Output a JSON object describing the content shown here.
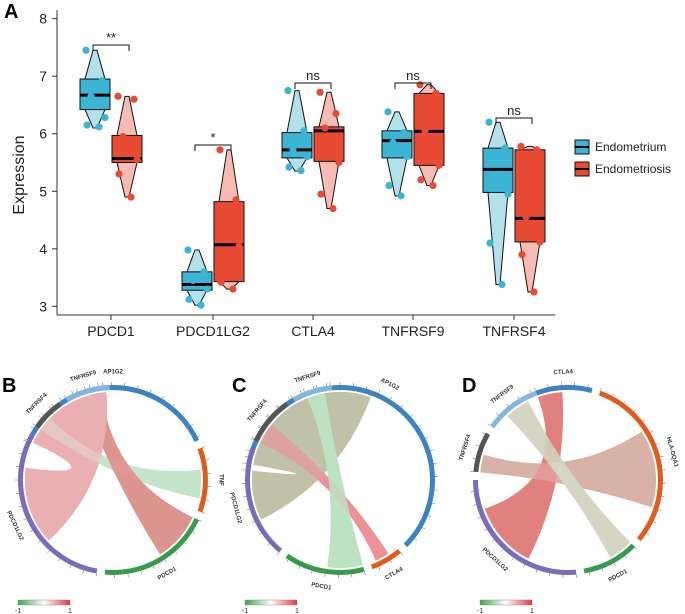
{
  "chart_data": [
    {
      "type": "box-violin",
      "panel": "A",
      "title": "",
      "xlabel": "",
      "ylabel": "Expression",
      "ylim": [
        2.85,
        8.15
      ],
      "yticks": [
        3,
        4,
        5,
        6,
        7,
        8
      ],
      "categories": [
        "PDCD1",
        "PDCD1LG2",
        "CTLA4",
        "TNFRSF9",
        "TNFRSF4"
      ],
      "significance": [
        "**",
        "*",
        "ns",
        "ns",
        "ns"
      ],
      "legend": {
        "position": "right",
        "items": [
          "Endometrium",
          "Endometriosis"
        ]
      },
      "colors": {
        "Endometrium": "#3cb4d4",
        "Endometriosis": "#e84a33",
        "EndometriumLight": "#a6dbe8",
        "EndometriosisLight": "#f4b0a6"
      },
      "series": [
        {
          "name": "Endometrium",
          "boxes": [
            {
              "min": 6.1,
              "q1": 6.42,
              "median": 6.67,
              "q3": 6.95,
              "max": 7.45,
              "points": [
                7.45,
                6.92,
                6.65,
                6.28,
                6.15,
                6.12
              ]
            },
            {
              "min": 3.02,
              "q1": 3.28,
              "median": 3.38,
              "q3": 3.6,
              "max": 3.98,
              "points": [
                3.98,
                3.6,
                3.45,
                3.3,
                3.12,
                3.02
              ]
            },
            {
              "min": 5.35,
              "q1": 5.58,
              "median": 5.72,
              "q3": 6.02,
              "max": 6.75,
              "points": [
                6.75,
                6.05,
                5.72,
                5.6,
                5.42,
                5.36
              ]
            },
            {
              "min": 4.92,
              "q1": 5.58,
              "median": 5.88,
              "q3": 6.05,
              "max": 6.38,
              "points": [
                6.38,
                6.02,
                5.85,
                5.6,
                5.1,
                4.92
              ]
            },
            {
              "min": 3.38,
              "q1": 4.98,
              "median": 5.38,
              "q3": 5.75,
              "max": 6.2,
              "points": [
                6.2,
                5.75,
                5.25,
                4.95,
                4.1,
                3.38
              ]
            }
          ]
        },
        {
          "name": "Endometriosis",
          "boxes": [
            {
              "min": 4.9,
              "q1": 5.5,
              "median": 5.57,
              "q3": 5.97,
              "max": 6.65,
              "points": [
                6.65,
                6.6,
                5.95,
                5.55,
                5.3,
                4.9
              ]
            },
            {
              "min": 3.3,
              "q1": 3.43,
              "median": 4.07,
              "q3": 4.82,
              "max": 5.72,
              "points": [
                5.72,
                4.85,
                4.3,
                4.05,
                3.42,
                3.3
              ]
            },
            {
              "min": 4.7,
              "q1": 5.52,
              "median": 6.05,
              "q3": 6.12,
              "max": 6.72,
              "points": [
                6.72,
                6.35,
                6.1,
                5.5,
                4.95,
                4.7
              ]
            },
            {
              "min": 5.1,
              "q1": 5.45,
              "median": 6.04,
              "q3": 6.7,
              "max": 6.85,
              "points": [
                6.85,
                6.7,
                6.05,
                5.45,
                5.2,
                5.1
              ]
            },
            {
              "min": 3.25,
              "q1": 4.12,
              "median": 4.53,
              "q3": 5.72,
              "max": 5.78,
              "points": [
                5.78,
                5.72,
                4.55,
                4.12,
                3.9,
                3.25
              ]
            }
          ]
        }
      ]
    },
    {
      "type": "chord",
      "panel": "B",
      "sectors": [
        "AP1G2",
        "TNF",
        "PDCD1",
        "PDCD1LG2",
        "TNFRSF4",
        "TNFRSF9"
      ],
      "colors": [
        "#3c82c4",
        "#e05c1c",
        "#3a9a4c",
        "#7a6cb8",
        "#555555",
        "#7fb7de"
      ],
      "spans": [
        [
          -65,
          65
        ],
        [
          70,
          110
        ],
        [
          115,
          185
        ],
        [
          190,
          300
        ],
        [
          305,
          325
        ],
        [
          330,
          358
        ]
      ],
      "links": [
        {
          "from": 1,
          "to": 4,
          "value": 0.55
        },
        {
          "from": 2,
          "to": 1,
          "value": -0.8
        },
        {
          "from": 3,
          "to": 3,
          "value": -0.5
        },
        {
          "from": 4,
          "to": 2,
          "value": 0.75
        },
        {
          "from": 5,
          "to": 2,
          "value": -0.2
        },
        {
          "from": 6,
          "to": 5,
          "value": 0.65
        },
        {
          "from": 7,
          "to": 6,
          "value": 0.3
        }
      ],
      "scale": {
        "min": "-1",
        "max": "1"
      }
    },
    {
      "type": "chord",
      "panel": "C",
      "sectors": [
        "AP1G2",
        "CTLA4",
        "PDCD1",
        "PDCD1LG2",
        "TNFRSF4",
        "TNFRSF9"
      ],
      "colors": [
        "#3c82c4",
        "#e05c1c",
        "#3a9a4c",
        "#7a6cb8",
        "#555555",
        "#7fb7de"
      ],
      "spans": [
        [
          -80,
          135
        ],
        [
          140,
          160
        ],
        [
          165,
          215
        ],
        [
          220,
          290
        ],
        [
          295,
          325
        ],
        [
          330,
          355
        ]
      ],
      "links": [
        {
          "from": 1,
          "to": 5,
          "value": 0.9
        },
        {
          "from": 2,
          "to": 7,
          "value": 0.85
        },
        {
          "from": 3,
          "to": 2,
          "value": -0.6
        },
        {
          "from": 4,
          "to": 3,
          "value": -0.4
        },
        {
          "from": 5,
          "to": 6,
          "value": 0.5
        },
        {
          "from": 6,
          "to": 1,
          "value": -0.3
        }
      ],
      "scale": {
        "min": "-1",
        "max": "1"
      }
    },
    {
      "type": "chord",
      "panel": "D",
      "sectors": [
        "CTLA4",
        "HLA-DQA1",
        "PDCD1",
        "PDCD1LG2",
        "TNFRSF4",
        "TNFRSF9"
      ],
      "colors": [
        "#3c82c4",
        "#e05c1c",
        "#3a9a4c",
        "#7a6cb8",
        "#555555",
        "#7fb7de"
      ],
      "spans": [
        [
          -20,
          15
        ],
        [
          20,
          130
        ],
        [
          135,
          170
        ],
        [
          175,
          270
        ],
        [
          275,
          300
        ],
        [
          305,
          340
        ]
      ],
      "links": [
        {
          "from": 1,
          "to": 5,
          "value": -0.35
        },
        {
          "from": 2,
          "to": 3,
          "value": -0.6
        },
        {
          "from": 3,
          "to": 4,
          "value": 0.7
        },
        {
          "from": 4,
          "to": 2,
          "value": 0.8
        },
        {
          "from": 5,
          "to": 1,
          "value": 0.45
        },
        {
          "from": 6,
          "to": 6,
          "value": -0.25
        }
      ],
      "scale": {
        "min": "-1",
        "max": "1"
      }
    }
  ]
}
